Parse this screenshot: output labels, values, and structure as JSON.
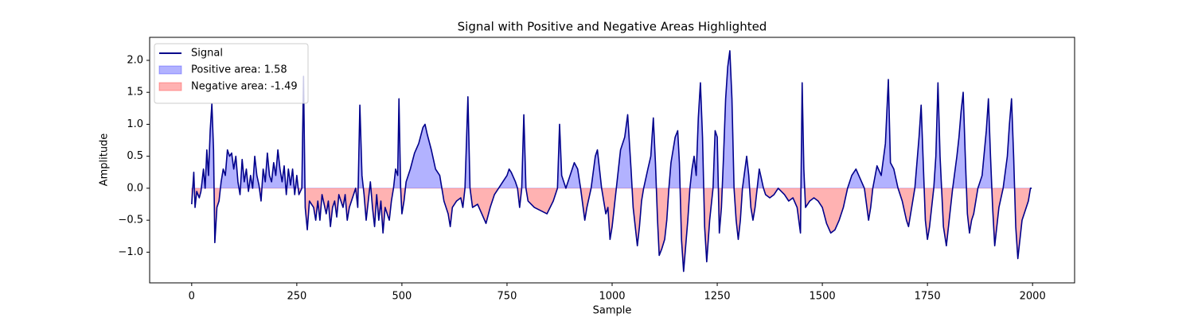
{
  "chart_data": {
    "type": "line",
    "title": "Signal with Positive and Negative Areas Highlighted",
    "x_label": "Sample",
    "y_label": "Amplitude",
    "x": [
      0,
      5,
      8,
      12,
      18,
      22,
      28,
      32,
      36,
      40,
      44,
      48,
      52,
      55,
      60,
      65,
      70,
      75,
      80,
      85,
      90,
      95,
      100,
      105,
      110,
      115,
      120,
      125,
      130,
      135,
      140,
      145,
      150,
      155,
      160,
      165,
      170,
      175,
      180,
      185,
      190,
      195,
      200,
      205,
      210,
      215,
      220,
      225,
      230,
      235,
      240,
      245,
      250,
      255,
      262,
      266,
      270,
      275,
      280,
      290,
      295,
      300,
      305,
      310,
      320,
      325,
      330,
      335,
      340,
      345,
      350,
      360,
      365,
      370,
      375,
      380,
      390,
      395,
      400,
      405,
      410,
      415,
      420,
      425,
      430,
      435,
      440,
      445,
      450,
      455,
      460,
      470,
      475,
      480,
      485,
      490,
      493,
      497,
      500,
      505,
      510,
      520,
      530,
      540,
      550,
      555,
      560,
      570,
      580,
      590,
      595,
      600,
      610,
      615,
      620,
      630,
      640,
      645,
      650,
      657,
      662,
      668,
      680,
      690,
      700,
      710,
      720,
      730,
      740,
      750,
      755,
      760,
      770,
      775,
      780,
      785,
      790,
      795,
      800,
      815,
      830,
      845,
      860,
      870,
      875,
      880,
      890,
      900,
      910,
      918,
      925,
      935,
      940,
      950,
      960,
      965,
      970,
      975,
      985,
      990,
      995,
      1000,
      1005,
      1010,
      1015,
      1020,
      1030,
      1037,
      1045,
      1050,
      1055,
      1060,
      1065,
      1070,
      1075,
      1085,
      1092,
      1098,
      1103,
      1108,
      1112,
      1118,
      1125,
      1130,
      1135,
      1140,
      1150,
      1156,
      1160,
      1165,
      1170,
      1175,
      1180,
      1185,
      1190,
      1195,
      1200,
      1205,
      1210,
      1215,
      1220,
      1225,
      1232,
      1240,
      1245,
      1250,
      1255,
      1260,
      1265,
      1270,
      1275,
      1280,
      1285,
      1290,
      1295,
      1300,
      1305,
      1310,
      1320,
      1325,
      1330,
      1335,
      1340,
      1345,
      1350,
      1355,
      1360,
      1365,
      1375,
      1385,
      1395,
      1410,
      1420,
      1430,
      1440,
      1448,
      1452,
      1456,
      1460,
      1470,
      1480,
      1490,
      1500,
      1510,
      1520,
      1530,
      1540,
      1550,
      1560,
      1570,
      1580,
      1590,
      1600,
      1610,
      1615,
      1620,
      1630,
      1640,
      1650,
      1657,
      1662,
      1670,
      1680,
      1690,
      1700,
      1705,
      1710,
      1715,
      1720,
      1730,
      1735,
      1740,
      1745,
      1750,
      1755,
      1760,
      1765,
      1770,
      1775,
      1780,
      1788,
      1795,
      1800,
      1805,
      1810,
      1820,
      1825,
      1830,
      1835,
      1840,
      1845,
      1850,
      1855,
      1860,
      1865,
      1870,
      1880,
      1890,
      1895,
      1900,
      1905,
      1910,
      1915,
      1920,
      1930,
      1940,
      1945,
      1950,
      1955,
      1960,
      1965,
      1970,
      1975,
      1980,
      1990,
      1995,
      1998
    ],
    "series": [
      {
        "name": "Signal",
        "color": "#00008b",
        "values": [
          -0.25,
          0.25,
          -0.3,
          -0.05,
          -0.15,
          -0.05,
          0.3,
          0.0,
          0.6,
          0.2,
          0.9,
          1.32,
          0.6,
          -0.85,
          -0.3,
          -0.2,
          0.1,
          0.3,
          0.2,
          0.6,
          0.5,
          0.55,
          0.3,
          0.5,
          0.1,
          -0.1,
          0.45,
          0.1,
          0.3,
          -0.05,
          0.2,
          0.0,
          0.5,
          0.2,
          0.05,
          -0.2,
          0.3,
          0.1,
          0.55,
          0.2,
          0.1,
          0.4,
          0.2,
          0.6,
          0.3,
          0.1,
          0.35,
          -0.1,
          0.3,
          0.05,
          0.3,
          -0.1,
          0.2,
          -0.1,
          0.0,
          1.75,
          -0.3,
          -0.65,
          -0.2,
          -0.3,
          -0.5,
          -0.2,
          -0.5,
          -0.1,
          -0.4,
          -0.2,
          -0.6,
          -0.3,
          -0.2,
          -0.45,
          -0.1,
          -0.3,
          -0.1,
          -0.5,
          -0.3,
          -0.2,
          0.0,
          -0.3,
          1.3,
          0.2,
          -0.1,
          -0.5,
          -0.2,
          0.1,
          -0.3,
          -0.6,
          -0.1,
          -0.5,
          -0.2,
          -0.7,
          -0.3,
          -0.5,
          -0.2,
          0.0,
          0.3,
          0.2,
          1.4,
          0.0,
          -0.4,
          -0.2,
          0.1,
          0.3,
          0.55,
          0.7,
          0.95,
          1.0,
          0.85,
          0.6,
          0.3,
          0.2,
          0.0,
          -0.2,
          -0.4,
          -0.6,
          -0.3,
          -0.2,
          -0.15,
          -0.3,
          0.0,
          1.43,
          0.0,
          -0.3,
          -0.25,
          -0.4,
          -0.55,
          -0.3,
          -0.1,
          0.0,
          0.1,
          0.2,
          0.3,
          0.25,
          0.1,
          0.0,
          -0.3,
          0.0,
          1.15,
          0.0,
          -0.2,
          -0.3,
          -0.35,
          -0.4,
          -0.2,
          0.0,
          1.0,
          0.2,
          0.0,
          0.2,
          0.4,
          0.3,
          0.0,
          -0.5,
          -0.3,
          0.0,
          0.5,
          0.6,
          0.3,
          0.0,
          -0.4,
          -0.3,
          -0.8,
          -0.6,
          -0.3,
          0.0,
          0.3,
          0.6,
          0.8,
          1.15,
          0.3,
          -0.3,
          -0.6,
          -0.9,
          -0.6,
          -0.2,
          0.0,
          0.3,
          0.5,
          1.1,
          0.4,
          -0.5,
          -1.05,
          -0.95,
          -0.8,
          -0.5,
          0.0,
          0.4,
          0.8,
          0.9,
          0.4,
          -0.8,
          -1.3,
          -0.9,
          -0.5,
          0.0,
          0.3,
          0.5,
          0.2,
          1.1,
          1.65,
          0.8,
          -0.6,
          -1.15,
          -0.5,
          0.0,
          0.9,
          0.8,
          -0.7,
          -0.3,
          0.5,
          1.4,
          1.9,
          2.15,
          1.4,
          0.0,
          -0.5,
          -0.8,
          -0.5,
          0.0,
          0.5,
          0.2,
          -0.3,
          -0.5,
          -0.3,
          0.0,
          0.3,
          0.15,
          0.0,
          -0.1,
          -0.15,
          -0.1,
          0.0,
          -0.1,
          -0.2,
          -0.15,
          -0.3,
          -0.7,
          1.65,
          0.3,
          -0.3,
          -0.2,
          -0.15,
          -0.2,
          -0.3,
          -0.55,
          -0.7,
          -0.65,
          -0.5,
          -0.3,
          0.0,
          0.2,
          0.3,
          0.15,
          0.0,
          -0.5,
          -0.3,
          0.0,
          0.35,
          0.2,
          0.7,
          1.7,
          0.4,
          0.3,
          0.0,
          -0.2,
          -0.5,
          -0.6,
          -0.4,
          -0.2,
          0.0,
          0.8,
          1.3,
          0.4,
          -0.5,
          -0.8,
          -0.6,
          -0.3,
          0.0,
          0.5,
          1.65,
          0.5,
          -0.6,
          -0.9,
          -0.6,
          -0.3,
          0.0,
          0.5,
          0.8,
          1.2,
          1.5,
          0.5,
          -0.4,
          -0.7,
          -0.5,
          -0.4,
          -0.2,
          0.0,
          0.2,
          0.9,
          1.4,
          0.5,
          -0.3,
          -0.9,
          -0.6,
          -0.3,
          0.0,
          0.5,
          1.0,
          1.4,
          0.5,
          -0.6,
          -1.1,
          -0.8,
          -0.5,
          -0.4,
          -0.2,
          0.0,
          0.0
        ]
      }
    ],
    "fills": [
      {
        "name": "Positive area: 1.58",
        "color": "#0000ff"
      },
      {
        "name": "Negative area: -1.49",
        "color": "#ff0000"
      }
    ],
    "xlim": [
      -100,
      2100
    ],
    "ylim": [
      -1.48,
      2.36
    ],
    "xticks": [
      0,
      250,
      500,
      750,
      1000,
      1250,
      1500,
      1750,
      2000
    ],
    "yticks": [
      {
        "value": -1,
        "label": "−1.0"
      },
      {
        "value": -0.5,
        "label": "−0.5"
      },
      {
        "value": 0,
        "label": "0.0"
      },
      {
        "value": 0.5,
        "label": "0.5"
      },
      {
        "value": 1,
        "label": "1.0"
      },
      {
        "value": 1.5,
        "label": "1.5"
      },
      {
        "value": 2,
        "label": "2.0"
      }
    ],
    "legend": "upper left",
    "grid": false
  }
}
